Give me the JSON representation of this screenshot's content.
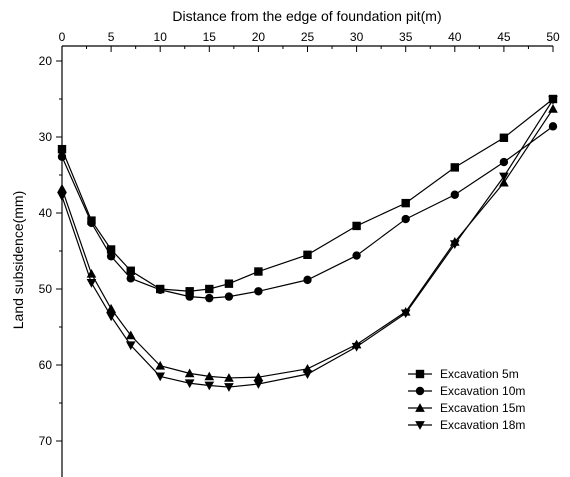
{
  "chart_data": {
    "type": "line",
    "xlabel": "Distance from the edge of foundation pit(m)",
    "ylabel": "Land subsidence(mm)",
    "x_axis_position": "top",
    "y_inverted": true,
    "xlim": [
      0,
      50
    ],
    "ylim": [
      20,
      75
    ],
    "xticks": [
      0,
      5,
      10,
      15,
      20,
      25,
      30,
      35,
      40,
      45,
      50
    ],
    "yticks": [
      20,
      30,
      40,
      50,
      60,
      70
    ],
    "grid": false,
    "legend_position": "bottom-right",
    "x": [
      0,
      3,
      5,
      7,
      10,
      13,
      15,
      17,
      20,
      25,
      30,
      35,
      40,
      45,
      50
    ],
    "series": [
      {
        "name": "Excavation 5m",
        "marker": "square",
        "values": [
          31.6,
          41.0,
          44.8,
          47.6,
          50.0,
          50.3,
          50.0,
          49.3,
          47.7,
          45.5,
          41.7,
          38.7,
          34.0,
          30.1,
          25.0
        ]
      },
      {
        "name": "Excavation 10m",
        "marker": "circle",
        "values": [
          32.6,
          41.3,
          45.7,
          48.6,
          50.1,
          51.0,
          51.2,
          51.0,
          50.3,
          48.8,
          45.6,
          40.8,
          37.6,
          33.3,
          28.6
        ]
      },
      {
        "name": "Excavation 15m",
        "marker": "triangle-up",
        "values": [
          36.8,
          48.0,
          52.6,
          56.1,
          60.1,
          61.1,
          61.5,
          61.7,
          61.6,
          60.5,
          57.3,
          53.0,
          43.8,
          36.0,
          26.3
        ]
      },
      {
        "name": "Excavation 18m",
        "marker": "triangle-down",
        "values": [
          37.8,
          49.2,
          53.6,
          57.4,
          61.5,
          62.4,
          62.7,
          62.9,
          62.5,
          61.2,
          57.6,
          53.2,
          44.1,
          35.2,
          25.1
        ]
      }
    ]
  }
}
